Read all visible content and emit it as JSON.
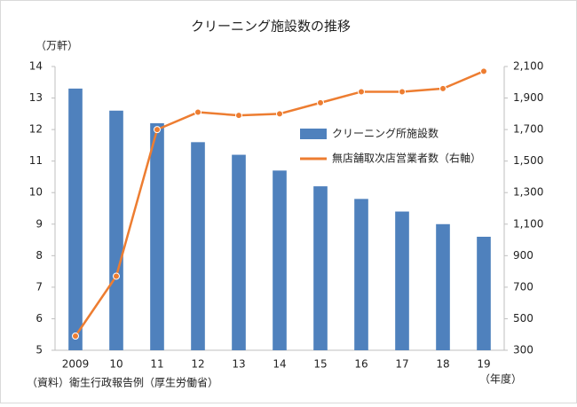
{
  "chart_data": {
    "type": "bar_line",
    "title": "クリーニング施設数の推移",
    "y_label": "（万軒）",
    "x_label": "（年度）",
    "source": "（資料）衛生行政報告例（厚生労働省）",
    "categories": [
      "2009",
      "10",
      "11",
      "12",
      "13",
      "14",
      "15",
      "16",
      "17",
      "18",
      "19"
    ],
    "series": [
      {
        "name": "クリーニング所施設数",
        "color": "#4f81bd",
        "type": "bar",
        "values": [
          13.3,
          12.6,
          12.2,
          11.6,
          11.2,
          10.7,
          10.2,
          9.8,
          9.4,
          9.0,
          8.6
        ]
      },
      {
        "name": "無店舗取次店営業者数（右軸）",
        "color": "#ed7d31",
        "type": "line",
        "axis": "y2",
        "values": [
          390,
          770,
          1700,
          1810,
          1790,
          1800,
          1870,
          1940,
          1940,
          1960,
          2070
        ]
      }
    ],
    "ylim": [
      5,
      14
    ],
    "yticks": [
      5,
      6,
      7,
      8,
      9,
      10,
      11,
      12,
      13,
      14
    ],
    "y2lim": [
      300,
      2100
    ],
    "y2ticks": [
      300,
      500,
      700,
      900,
      {
        "value": 1100,
        "label": "1,100"
      },
      {
        "value": 1300,
        "label": "1,300"
      },
      {
        "value": 1500,
        "label": "1,500"
      },
      {
        "value": 1700,
        "label": "1,700"
      },
      {
        "value": 1900,
        "label": "1,900"
      },
      {
        "value": 2100,
        "label": "2,100"
      }
    ],
    "grid": false,
    "legend": "upper right"
  }
}
